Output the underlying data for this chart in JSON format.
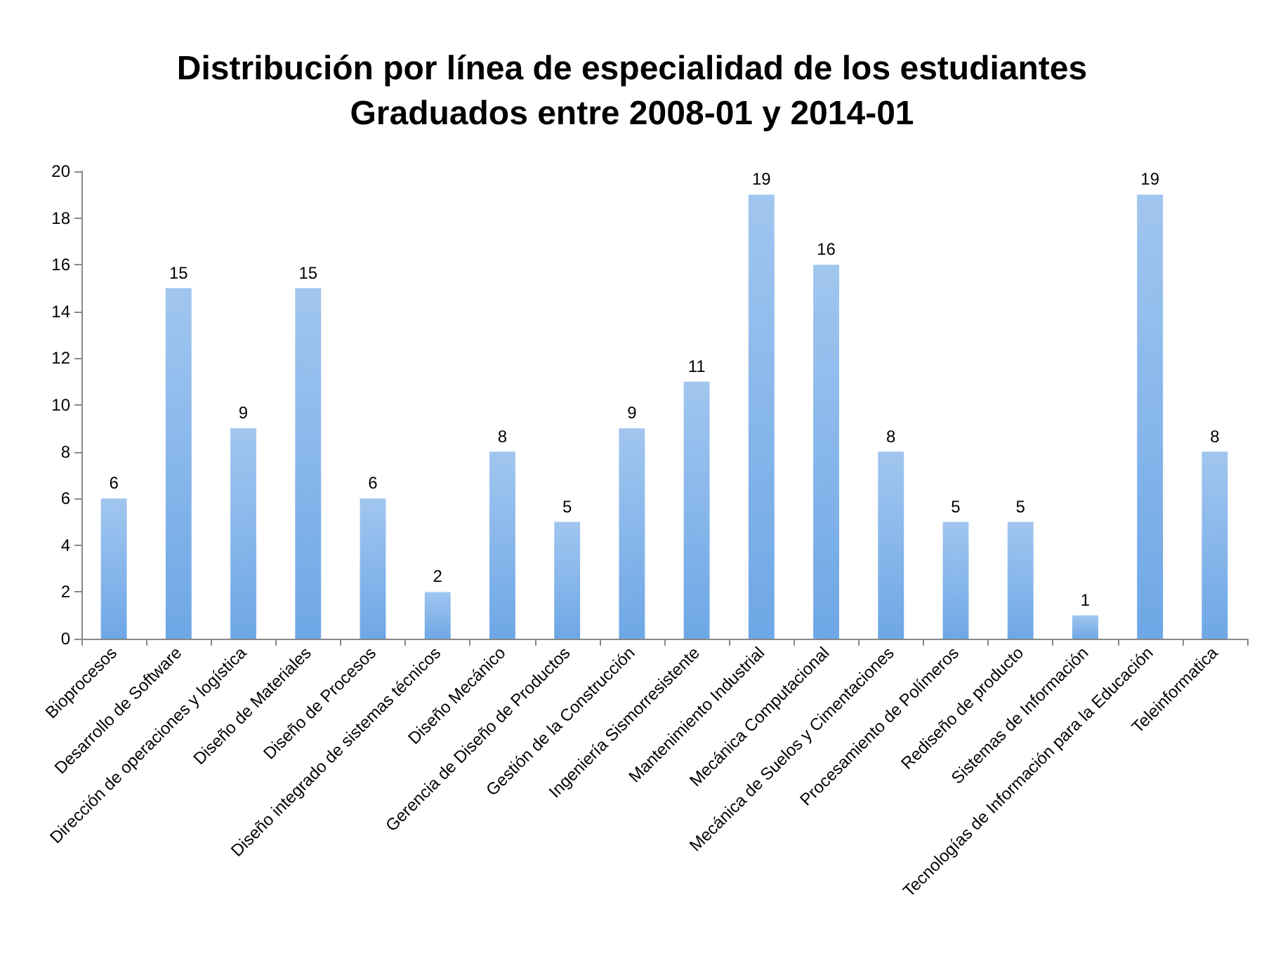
{
  "chart_data": {
    "type": "bar",
    "title": "Distribución por línea de especialidad de los estudiantes\nGraduados entre 2008-01 y 2014-01",
    "categories": [
      "Bioprocesos",
      "Desarrollo de Software",
      "Dirección de operaciones y logística",
      "Diseño de Materiales",
      "Diseño de Procesos",
      "Diseño integrado de sistemas técnicos",
      "Diseño Mecánico",
      "Gerencia de Diseño de Productos",
      "Gestión de la Construcción",
      "Ingeniería Sismorresistente",
      "Mantenimiento Industrial",
      "Mecánica Computacional",
      "Mecánica de Suelos y Cimentaciones",
      "Procesamiento de Polímeros",
      "Rediseño de producto",
      "Sistemas de Información",
      "Tecnologías de Información para la Educación",
      "Teleinformatica"
    ],
    "values": [
      6,
      15,
      9,
      15,
      6,
      2,
      8,
      5,
      9,
      11,
      19,
      16,
      8,
      5,
      5,
      1,
      19,
      8
    ],
    "color": "#6ea7e6",
    "ylim": [
      0,
      20
    ],
    "yticks": [
      0,
      2,
      4,
      6,
      8,
      10,
      12,
      14,
      16,
      18,
      20
    ],
    "grid": false,
    "data_labels": true
  }
}
